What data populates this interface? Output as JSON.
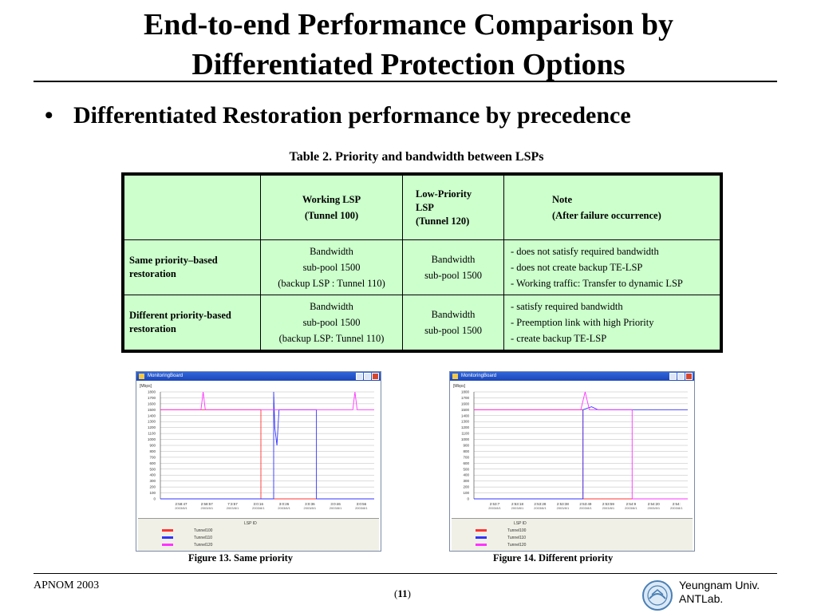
{
  "slide": {
    "title_line1": "End-to-end Performance Comparison by",
    "title_line2": "Differentiated Protection Options",
    "bullet_symbol": "•",
    "bullet": "Differentiated Restoration performance by precedence",
    "table_caption": "Table 2. Priority and bandwidth between LSPs"
  },
  "table": {
    "header": {
      "col1": "",
      "col2": [
        "Working LSP",
        "(Tunnel 100)"
      ],
      "col3": [
        "Low-Priority",
        "LSP",
        "(Tunnel 120)"
      ],
      "col4": [
        "Note",
        "(After failure occurrence)"
      ]
    },
    "rows": [
      {
        "label": "Same priority–based restoration",
        "working": [
          "Bandwidth",
          "sub-pool 1500",
          "(backup LSP : Tunnel 110)"
        ],
        "low": [
          "Bandwidth",
          "sub-pool 1500"
        ],
        "notes": [
          "- does not satisfy required bandwidth",
          "- does not create backup TE-LSP",
          "- Working traffic:  Transfer to dynamic LSP"
        ]
      },
      {
        "label": "Different priority-based restoration",
        "working": [
          "Bandwidth",
          "sub-pool 1500",
          "(backup LSP: Tunnel 110)"
        ],
        "low": [
          "Bandwidth",
          "sub-pool 1500"
        ],
        "notes": [
          "- satisfy required bandwidth",
          "- Preemption link with high Priority",
          "- create backup TE-LSP"
        ]
      }
    ]
  },
  "figures": [
    {
      "window_title": "MonitoringBoard",
      "caption": "Figure 13. Same priority",
      "y_unit": "[Mbps]",
      "y_ticks": [
        "1800",
        "1700",
        "1600",
        "1500",
        "1400",
        "1300",
        "1200",
        "1100",
        "1000",
        "900",
        "800",
        "700",
        "600",
        "500",
        "400",
        "300",
        "200",
        "100",
        "0"
      ],
      "x_ticks": [
        "2:58:47",
        "2:58:57",
        "7:3:57",
        "3:0:16",
        "3:0:26",
        "3:0:36",
        "3:0:46",
        "3:0:56"
      ],
      "x_date": "2003/8/1",
      "legend_title": "LSP ID",
      "legend": [
        "Tunnel100",
        "Tunnel110",
        "Tunnel120"
      ]
    },
    {
      "window_title": "MonitoringBoard",
      "caption": "Figure 14. Different priority",
      "y_unit": "[Mbps]",
      "y_ticks": [
        "1800",
        "1700",
        "1600",
        "1500",
        "1400",
        "1300",
        "1200",
        "1100",
        "1000",
        "900",
        "800",
        "700",
        "600",
        "500",
        "400",
        "300",
        "200",
        "100",
        "0"
      ],
      "x_ticks": [
        "2:53:7",
        "2:53:18",
        "2:53:28",
        "2:53:38",
        "2:53:49",
        "2:53:59",
        "2:54:9",
        "2:54:20",
        "2:54:"
      ],
      "x_date": "2003/8/1",
      "legend_title": "LSP ID",
      "legend": [
        "Tunnel100",
        "Tunnel110",
        "Tunnel120"
      ]
    }
  ],
  "colors": {
    "tunnel100": "#ff3333",
    "tunnel110": "#3333ff",
    "tunnel120": "#ff33ff",
    "table_bg": "#ccffcc"
  },
  "footer": {
    "left": "APNOM 2003",
    "page_open": "(",
    "page": "11",
    "page_close": ")",
    "org_line1": "Yeungnam Univ.",
    "org_line2": "ANTLab."
  }
}
